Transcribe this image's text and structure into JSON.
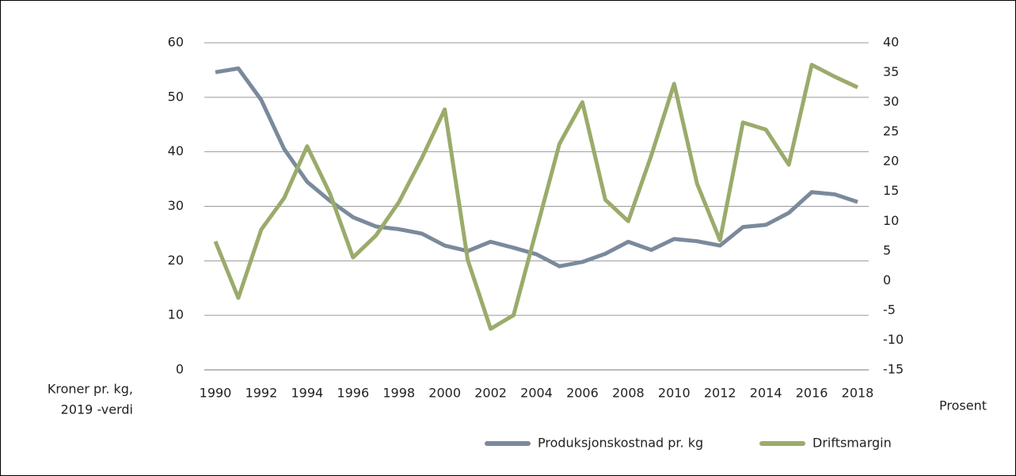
{
  "chart_data": {
    "type": "line",
    "categories": [
      "1990",
      null,
      "1992",
      null,
      "1994",
      null,
      "1996",
      null,
      "1998",
      null,
      "2000",
      null,
      "2002",
      null,
      "2004",
      null,
      "2006",
      null,
      "2008",
      null,
      "2010",
      null,
      "2012",
      null,
      "2014",
      null,
      "2016",
      null,
      "2018"
    ],
    "series": [
      {
        "name": "Produksjonskostnad pr. kg",
        "color": "#7a8a9c",
        "axis": "y",
        "values": [
          54.6,
          55.3,
          49.5,
          40.5,
          34.5,
          31,
          28,
          26.3,
          25.8,
          25,
          22.8,
          21.8,
          23.5,
          22.4,
          21.2,
          19,
          19.8,
          21.3,
          23.5,
          22,
          24,
          23.6,
          22.8,
          26.2,
          26.6,
          28.8,
          32.6,
          32.2,
          30.8
        ]
      },
      {
        "name": "Driftsmargin",
        "color": "#9aab6b",
        "axis": "y2",
        "values": [
          6.6,
          -2.9,
          8.6,
          13.9,
          22.6,
          14.6,
          3.9,
          7.6,
          13.2,
          20.6,
          28.8,
          3.5,
          -8.1,
          -5.8,
          8.6,
          23,
          30,
          13.6,
          10,
          21,
          33.1,
          16.3,
          6.8,
          26.6,
          25.4,
          19.5,
          36.3,
          34.3,
          32.5
        ]
      }
    ],
    "y_label": [
      "Kroner pr. kg,",
      "2019 -verdi"
    ],
    "y2_label": "Prosent",
    "ylim": [
      0,
      60
    ],
    "yticks": [
      0,
      10,
      20,
      30,
      40,
      50,
      60
    ],
    "y2lim": [
      -15,
      40
    ],
    "y2ticks": [
      -15,
      -10,
      -5,
      0,
      5,
      10,
      15,
      20,
      25,
      30,
      35,
      40
    ],
    "grid": true,
    "legend": "bottom"
  }
}
